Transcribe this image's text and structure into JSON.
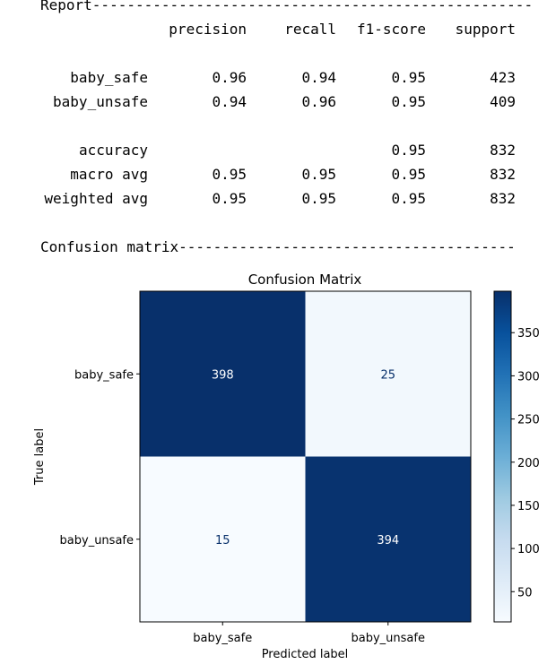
{
  "report": {
    "header_line": "Report---------------------------------------------------",
    "columns": [
      "precision",
      "recall",
      "f1-score",
      "support"
    ],
    "rows": [
      {
        "label": "baby_safe",
        "values": [
          "0.96",
          "0.94",
          "0.95",
          "423"
        ]
      },
      {
        "label": "baby_unsafe",
        "values": [
          "0.94",
          "0.96",
          "0.95",
          "409"
        ]
      },
      {
        "label": "accuracy",
        "values": [
          "",
          "",
          "0.95",
          "832"
        ]
      },
      {
        "label": "macro avg",
        "values": [
          "0.95",
          "0.95",
          "0.95",
          "832"
        ]
      },
      {
        "label": "weighted avg",
        "values": [
          "0.95",
          "0.95",
          "0.95",
          "832"
        ]
      }
    ],
    "confusion_header_line": "Confusion matrix---------------------------------------"
  },
  "chart_data": {
    "type": "heatmap",
    "title": "Confusion Matrix",
    "xlabel": "Predicted label",
    "ylabel": "True label",
    "x_categories": [
      "baby_safe",
      "baby_unsafe"
    ],
    "y_categories": [
      "baby_safe",
      "baby_unsafe"
    ],
    "matrix": [
      [
        398,
        25
      ],
      [
        15,
        394
      ]
    ],
    "colormap": "Blues",
    "colorbar": {
      "min": 15,
      "max": 398,
      "ticks": [
        50,
        100,
        150,
        200,
        250,
        300,
        350
      ]
    },
    "colors": {
      "dark_text": "#08306b",
      "light_text": "#ffffff"
    }
  }
}
